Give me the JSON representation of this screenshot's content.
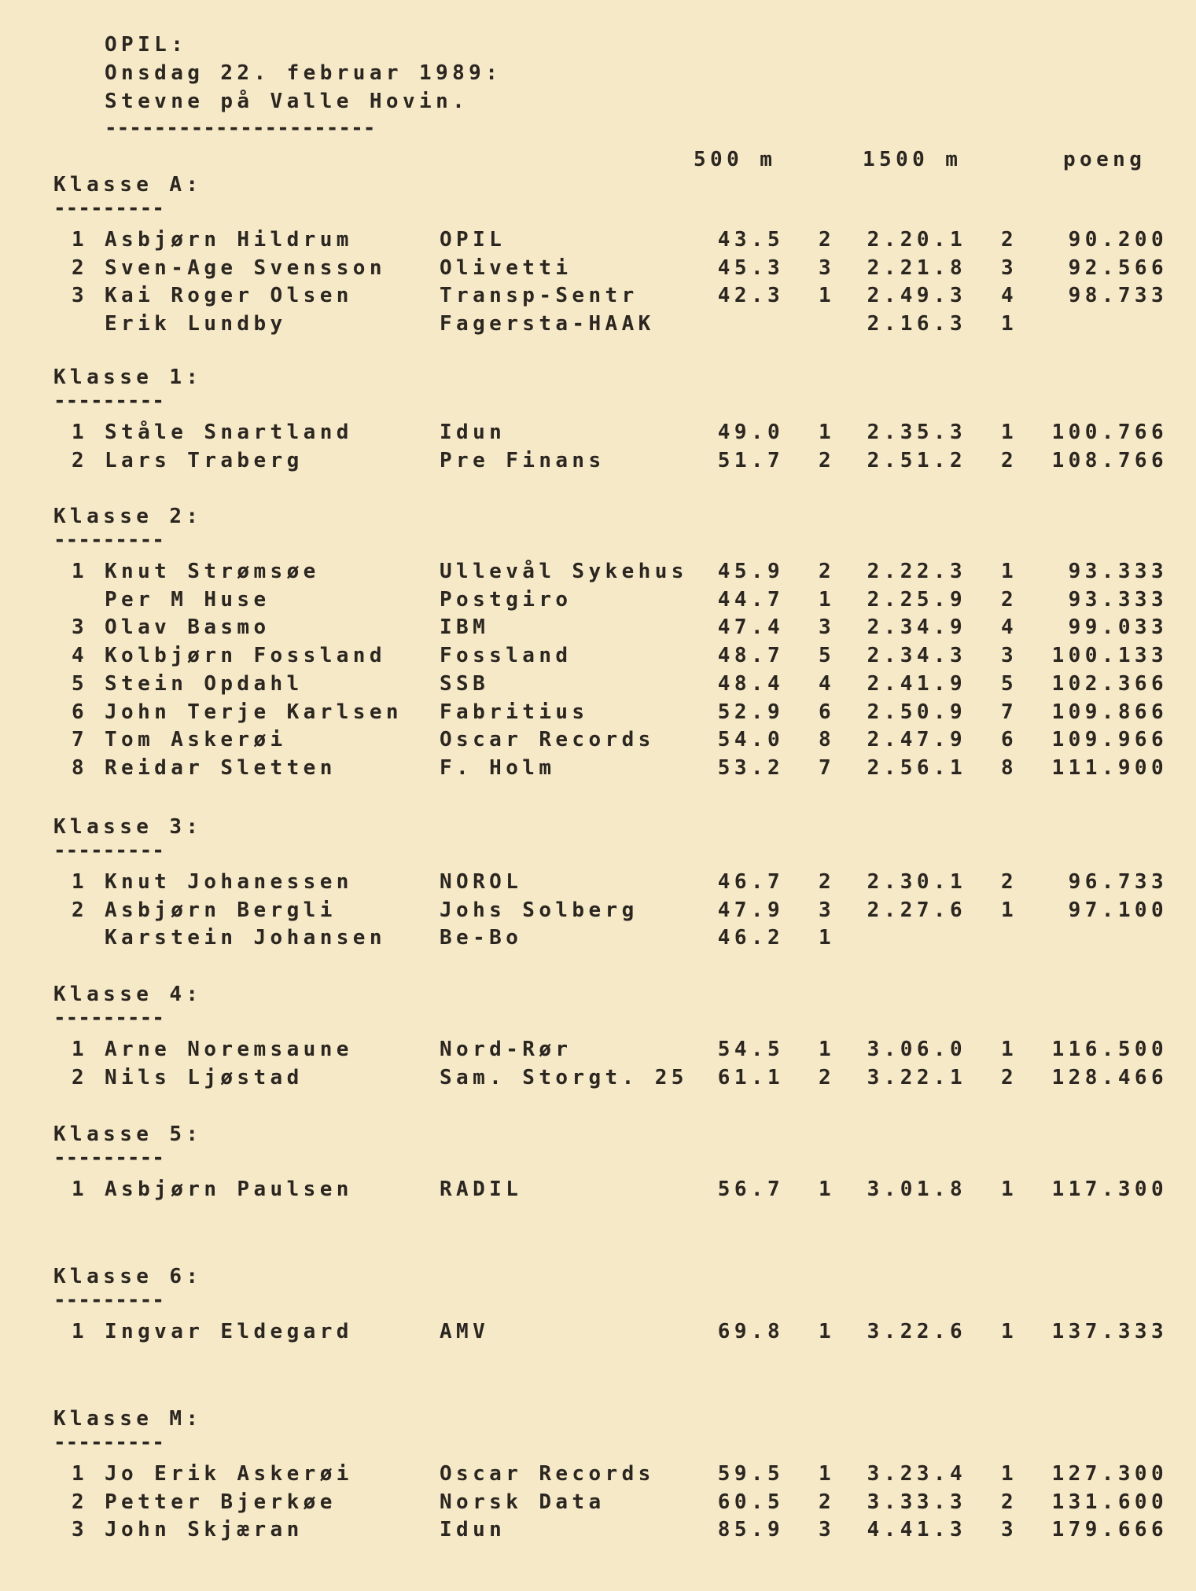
{
  "header": {
    "org": "OPIL:",
    "date": "Onsdag 22. februar 1989:",
    "event": "Stevne på Valle Hovin.",
    "underline": "----------------------"
  },
  "columns": {
    "c500": "500 m",
    "c1500": "1500 m",
    "poeng": "poeng"
  },
  "sections": [
    {
      "title": "Klasse A:",
      "underline": "---------",
      "rows": [
        {
          "rank": "1",
          "name": "Asbjørn Hildrum",
          "club": "OPIL",
          "t500": "43.5",
          "p500": "2",
          "t1500": "2.20.1",
          "p1500": "2",
          "points": "90.200"
        },
        {
          "rank": "2",
          "name": "Sven-Age Svensson",
          "club": "Olivetti",
          "t500": "45.3",
          "p500": "3",
          "t1500": "2.21.8",
          "p1500": "3",
          "points": "92.566"
        },
        {
          "rank": "3",
          "name": "Kai Roger Olsen",
          "club": "Transp-Sentr",
          "t500": "42.3",
          "p500": "1",
          "t1500": "2.49.3",
          "p1500": "4",
          "points": "98.733"
        },
        {
          "rank": "",
          "name": "Erik Lundby",
          "club": "Fagersta-HAAK",
          "t500": "",
          "p500": "",
          "t1500": "2.16.3",
          "p1500": "1",
          "points": ""
        }
      ]
    },
    {
      "title": "Klasse 1:",
      "underline": "---------",
      "rows": [
        {
          "rank": "1",
          "name": "Ståle Snartland",
          "club": "Idun",
          "t500": "49.0",
          "p500": "1",
          "t1500": "2.35.3",
          "p1500": "1",
          "points": "100.766"
        },
        {
          "rank": "2",
          "name": "Lars Traberg",
          "club": "Pre Finans",
          "t500": "51.7",
          "p500": "2",
          "t1500": "2.51.2",
          "p1500": "2",
          "points": "108.766"
        }
      ]
    },
    {
      "title": "Klasse 2:",
      "underline": "---------",
      "rows": [
        {
          "rank": "1",
          "name": "Knut Strømsøe",
          "club": "Ullevål Sykehus",
          "t500": "45.9",
          "p500": "2",
          "t1500": "2.22.3",
          "p1500": "1",
          "points": "93.333"
        },
        {
          "rank": "",
          "name": "Per M Huse",
          "club": "Postgiro",
          "t500": "44.7",
          "p500": "1",
          "t1500": "2.25.9",
          "p1500": "2",
          "points": "93.333"
        },
        {
          "rank": "3",
          "name": "Olav Basmo",
          "club": "IBM",
          "t500": "47.4",
          "p500": "3",
          "t1500": "2.34.9",
          "p1500": "4",
          "points": "99.033"
        },
        {
          "rank": "4",
          "name": "Kolbjørn Fossland",
          "club": "Fossland",
          "t500": "48.7",
          "p500": "5",
          "t1500": "2.34.3",
          "p1500": "3",
          "points": "100.133"
        },
        {
          "rank": "5",
          "name": "Stein Opdahl",
          "club": "SSB",
          "t500": "48.4",
          "p500": "4",
          "t1500": "2.41.9",
          "p1500": "5",
          "points": "102.366"
        },
        {
          "rank": "6",
          "name": "John Terje Karlsen",
          "club": "Fabritius",
          "t500": "52.9",
          "p500": "6",
          "t1500": "2.50.9",
          "p1500": "7",
          "points": "109.866"
        },
        {
          "rank": "7",
          "name": "Tom Askerøi",
          "club": "Oscar Records",
          "t500": "54.0",
          "p500": "8",
          "t1500": "2.47.9",
          "p1500": "6",
          "points": "109.966"
        },
        {
          "rank": "8",
          "name": "Reidar Sletten",
          "club": "F. Holm",
          "t500": "53.2",
          "p500": "7",
          "t1500": "2.56.1",
          "p1500": "8",
          "points": "111.900"
        }
      ]
    },
    {
      "title": "Klasse 3:",
      "underline": "---------",
      "rows": [
        {
          "rank": "1",
          "name": "Knut Johanessen",
          "club": "NOROL",
          "t500": "46.7",
          "p500": "2",
          "t1500": "2.30.1",
          "p1500": "2",
          "points": "96.733"
        },
        {
          "rank": "2",
          "name": "Asbjørn Bergli",
          "club": "Johs Solberg",
          "t500": "47.9",
          "p500": "3",
          "t1500": "2.27.6",
          "p1500": "1",
          "points": "97.100"
        },
        {
          "rank": "",
          "name": "Karstein Johansen",
          "club": "Be-Bo",
          "t500": "46.2",
          "p500": "1",
          "t1500": "",
          "p1500": "",
          "points": ""
        }
      ]
    },
    {
      "title": "Klasse 4:",
      "underline": "---------",
      "rows": [
        {
          "rank": "1",
          "name": "Arne Noremsaune",
          "club": "Nord-Rør",
          "t500": "54.5",
          "p500": "1",
          "t1500": "3.06.0",
          "p1500": "1",
          "points": "116.500"
        },
        {
          "rank": "2",
          "name": "Nils Ljøstad",
          "club": "Sam. Storgt. 25",
          "t500": "61.1",
          "p500": "2",
          "t1500": "3.22.1",
          "p1500": "2",
          "points": "128.466"
        }
      ]
    },
    {
      "title": "Klasse 5:",
      "underline": "---------",
      "rows": [
        {
          "rank": "1",
          "name": "Asbjørn Paulsen",
          "club": "RADIL",
          "t500": "56.7",
          "p500": "1",
          "t1500": "3.01.8",
          "p1500": "1",
          "points": "117.300"
        }
      ]
    },
    {
      "title": "Klasse 6:",
      "underline": "---------",
      "rows": [
        {
          "rank": "1",
          "name": "Ingvar Eldegard",
          "club": "AMV",
          "t500": "69.8",
          "p500": "1",
          "t1500": "3.22.6",
          "p1500": "1",
          "points": "137.333"
        }
      ]
    },
    {
      "title": "Klasse M:",
      "underline": "---------",
      "rows": [
        {
          "rank": "1",
          "name": "Jo Erik Askerøi",
          "club": "Oscar Records",
          "t500": "59.5",
          "p500": "1",
          "t1500": "3.23.4",
          "p1500": "1",
          "points": "127.300"
        },
        {
          "rank": "2",
          "name": "Petter Bjerkøe",
          "club": "Norsk Data",
          "t500": "60.5",
          "p500": "2",
          "t1500": "3.33.3",
          "p1500": "2",
          "points": "131.600"
        },
        {
          "rank": "3",
          "name": "John Skjæran",
          "club": "Idun",
          "t500": "85.9",
          "p500": "3",
          "t1500": "4.41.3",
          "p1500": "3",
          "points": "179.666"
        }
      ]
    }
  ],
  "colors": {
    "paper": "#f6e9c8",
    "ink": "#2b2620"
  }
}
